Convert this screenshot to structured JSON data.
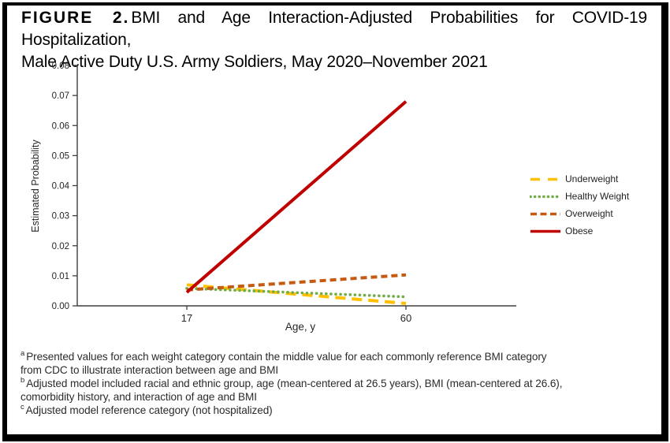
{
  "figure": {
    "label": "FIGURE 2.",
    "title_line1": "BMI and Age Interaction-Adjusted Probabilities for COVID-19 Hospitalization,",
    "title_line2": "Male Active Duty U.S. Army Soldiers, May 2020–November 2021"
  },
  "chart_data": {
    "type": "line",
    "title": "",
    "xlabel": "Age, y",
    "ylabel": "Estimated Probability",
    "x": [
      17,
      60
    ],
    "x_tick_labels": [
      "17",
      "60"
    ],
    "ylim": [
      0,
      0.08
    ],
    "y_tick_labels": [
      "0.00",
      "0.01",
      "0.02",
      "0.03",
      "0.04",
      "0.05",
      "0.06",
      "0.07",
      "0.08"
    ],
    "grid": false,
    "legend_position": "right",
    "series": [
      {
        "name": "Underweight",
        "values": [
          0.007,
          0.0008
        ],
        "color": "#FFC000",
        "line_style": "long-dash"
      },
      {
        "name": "Healthy Weight",
        "values": [
          0.0058,
          0.003
        ],
        "color": "#70AD47",
        "line_style": "dotted"
      },
      {
        "name": "Overweight",
        "values": [
          0.0053,
          0.0103
        ],
        "color": "#C55A11",
        "line_style": "dashed"
      },
      {
        "name": "Obese",
        "values": [
          0.0045,
          0.068
        ],
        "color": "#C00000",
        "line_style": "solid"
      }
    ],
    "axis_color": "#3f3f3f"
  },
  "footnotes": [
    {
      "sup": "a",
      "lines": [
        "Presented values for each weight category contain the middle value for each commonly reference BMI category",
        "from CDC to illustrate interaction between age and BMI"
      ]
    },
    {
      "sup": "b",
      "lines": [
        "Adjusted model included racial and ethnic group, age (mean-centered at 26.5 years), BMI (mean-centered at 26.6),",
        "comorbidity history, and interaction of age and BMI"
      ]
    },
    {
      "sup": "c",
      "lines": [
        "Adjusted model reference category (not hospitalized)"
      ]
    }
  ]
}
